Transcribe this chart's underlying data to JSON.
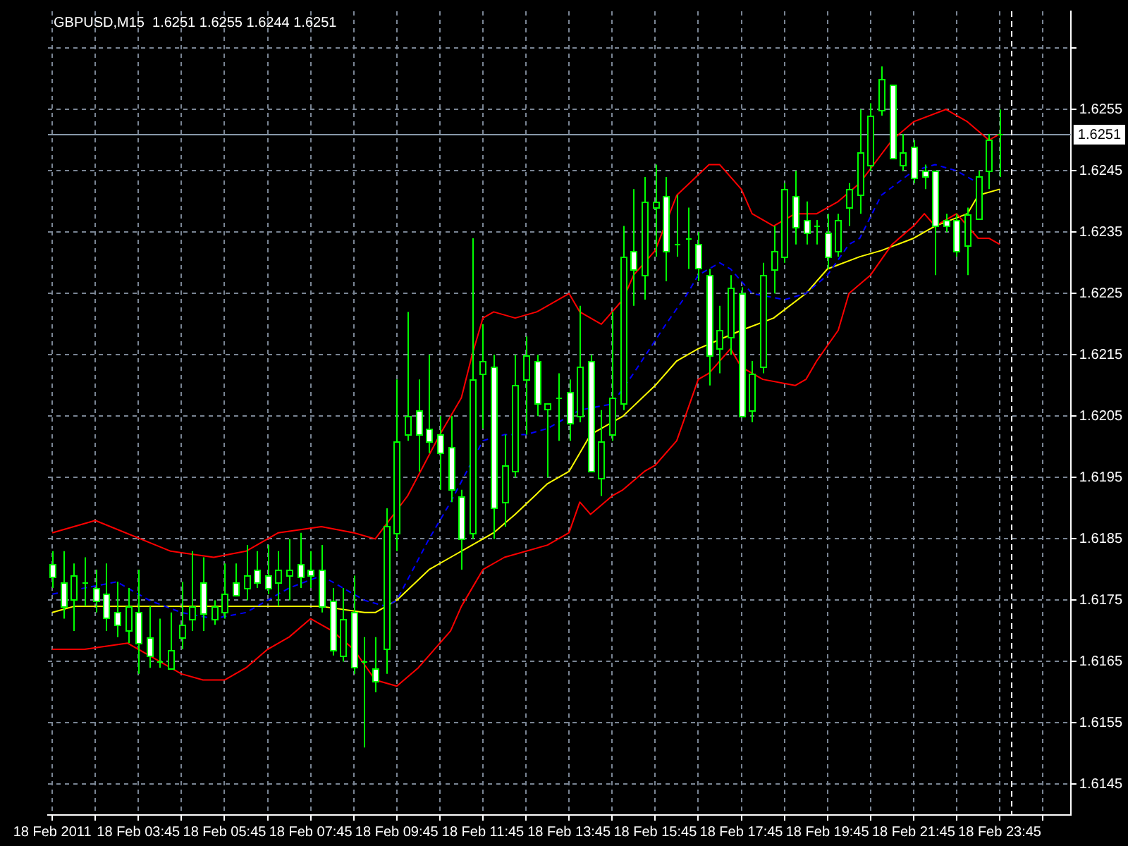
{
  "chart_data": {
    "type": "candlestick",
    "title": "GBPUSD,M15  1.6251 1.6255 1.6244 1.6251",
    "x": [
      "2011-02-18T01:45",
      "2011-02-18T02:00",
      "2011-02-18T02:15",
      "2011-02-18T02:30",
      "2011-02-18T02:45",
      "2011-02-18T03:00",
      "2011-02-18T03:15",
      "2011-02-18T03:30",
      "2011-02-18T03:45",
      "2011-02-18T04:00",
      "2011-02-18T04:15",
      "2011-02-18T04:30",
      "2011-02-18T04:45",
      "2011-02-18T05:00",
      "2011-02-18T05:15",
      "2011-02-18T05:30",
      "2011-02-18T05:45",
      "2011-02-18T06:00",
      "2011-02-18T06:15",
      "2011-02-18T06:30",
      "2011-02-18T06:45",
      "2011-02-18T07:00",
      "2011-02-18T07:15",
      "2011-02-18T07:30",
      "2011-02-18T07:45",
      "2011-02-18T08:00",
      "2011-02-18T08:15",
      "2011-02-18T08:30",
      "2011-02-18T08:45",
      "2011-02-18T09:00",
      "2011-02-18T09:15",
      "2011-02-18T09:30",
      "2011-02-18T09:45",
      "2011-02-18T10:00",
      "2011-02-18T10:15",
      "2011-02-18T10:30",
      "2011-02-18T10:45",
      "2011-02-18T11:00",
      "2011-02-18T11:15",
      "2011-02-18T11:30",
      "2011-02-18T11:45",
      "2011-02-18T12:00",
      "2011-02-18T12:15",
      "2011-02-18T12:30",
      "2011-02-18T12:45",
      "2011-02-18T13:00",
      "2011-02-18T13:15",
      "2011-02-18T13:30",
      "2011-02-18T13:45",
      "2011-02-18T14:00",
      "2011-02-18T14:15",
      "2011-02-18T14:30",
      "2011-02-18T14:45",
      "2011-02-18T15:00",
      "2011-02-18T15:15",
      "2011-02-18T15:30",
      "2011-02-18T15:45",
      "2011-02-18T16:00",
      "2011-02-18T16:15",
      "2011-02-18T16:30",
      "2011-02-18T16:45",
      "2011-02-18T17:00",
      "2011-02-18T17:15",
      "2011-02-18T17:30",
      "2011-02-18T17:45",
      "2011-02-18T18:00",
      "2011-02-18T18:15",
      "2011-02-18T18:30",
      "2011-02-18T18:45",
      "2011-02-18T19:00",
      "2011-02-18T19:15",
      "2011-02-18T19:30",
      "2011-02-18T19:45",
      "2011-02-18T20:00",
      "2011-02-18T20:15",
      "2011-02-18T20:30",
      "2011-02-18T20:45",
      "2011-02-18T21:00",
      "2011-02-18T21:15",
      "2011-02-18T21:30",
      "2011-02-18T21:45",
      "2011-02-18T22:00",
      "2011-02-18T22:15",
      "2011-02-18T22:30",
      "2011-02-18T22:45",
      "2011-02-18T23:00",
      "2011-02-18T23:15",
      "2011-02-18T23:30",
      "2011-02-18T23:45"
    ],
    "ohlc": [
      [
        1.6181,
        1.6183,
        1.6177,
        1.6179
      ],
      [
        1.6178,
        1.6183,
        1.6172,
        1.6174
      ],
      [
        1.6175,
        1.6181,
        1.617,
        1.6179
      ],
      [
        1.6178,
        1.6182,
        1.6174,
        1.6178
      ],
      [
        1.6177,
        1.618,
        1.6173,
        1.6175
      ],
      [
        1.6176,
        1.6181,
        1.617,
        1.6172
      ],
      [
        1.6173,
        1.6178,
        1.6169,
        1.6171
      ],
      [
        1.617,
        1.6177,
        1.6168,
        1.6174
      ],
      [
        1.6173,
        1.618,
        1.6163,
        1.6168
      ],
      [
        1.6169,
        1.6174,
        1.6164,
        1.6166
      ],
      [
        1.6165,
        1.6172,
        1.6164,
        1.6165
      ],
      [
        1.6164,
        1.6173,
        1.6164,
        1.6167
      ],
      [
        1.6169,
        1.6178,
        1.6167,
        1.6171
      ],
      [
        1.6172,
        1.6183,
        1.617,
        1.6174
      ],
      [
        1.6178,
        1.6182,
        1.617,
        1.6173
      ],
      [
        1.6172,
        1.6175,
        1.6171,
        1.6174
      ],
      [
        1.6173,
        1.6181,
        1.6172,
        1.6176
      ],
      [
        1.6178,
        1.6181,
        1.6176,
        1.6176
      ],
      [
        1.6177,
        1.6184,
        1.6175,
        1.6179
      ],
      [
        1.618,
        1.6183,
        1.6177,
        1.6178
      ],
      [
        1.6179,
        1.6184,
        1.6176,
        1.6177
      ],
      [
        1.6178,
        1.6183,
        1.6174,
        1.618
      ],
      [
        1.6179,
        1.6185,
        1.6175,
        1.618
      ],
      [
        1.6181,
        1.6186,
        1.6177,
        1.6179
      ],
      [
        1.618,
        1.6183,
        1.6177,
        1.6179
      ],
      [
        1.618,
        1.6184,
        1.6173,
        1.6174
      ],
      [
        1.6175,
        1.6177,
        1.6166,
        1.6167
      ],
      [
        1.6166,
        1.6177,
        1.6165,
        1.6172
      ],
      [
        1.6173,
        1.6179,
        1.6163,
        1.6164
      ],
      [
        1.6165,
        1.6169,
        1.6151,
        1.6165
      ],
      [
        1.6164,
        1.6169,
        1.616,
        1.6162
      ],
      [
        1.6167,
        1.619,
        1.6163,
        1.6187
      ],
      [
        1.6186,
        1.6211,
        1.6183,
        1.6201
      ],
      [
        1.6202,
        1.6222,
        1.6201,
        1.6205
      ],
      [
        1.6206,
        1.6211,
        1.6196,
        1.6202
      ],
      [
        1.6203,
        1.6215,
        1.6199,
        1.6201
      ],
      [
        1.6202,
        1.6205,
        1.6193,
        1.6199
      ],
      [
        1.62,
        1.6205,
        1.6191,
        1.6193
      ],
      [
        1.6192,
        1.6193,
        1.618,
        1.6185
      ],
      [
        1.6186,
        1.6234,
        1.6185,
        1.6211
      ],
      [
        1.6212,
        1.622,
        1.6203,
        1.6214
      ],
      [
        1.6213,
        1.6215,
        1.6185,
        1.619
      ],
      [
        1.6191,
        1.6202,
        1.6187,
        1.6197
      ],
      [
        1.6196,
        1.6215,
        1.6195,
        1.621
      ],
      [
        1.6211,
        1.6218,
        1.6202,
        1.6215
      ],
      [
        1.6214,
        1.6215,
        1.6205,
        1.6207
      ],
      [
        1.6206,
        1.6207,
        1.6195,
        1.6207
      ],
      [
        1.6208,
        1.6212,
        1.6201,
        1.6208
      ],
      [
        1.6209,
        1.6211,
        1.6201,
        1.6204
      ],
      [
        1.6205,
        1.6223,
        1.6204,
        1.6213
      ],
      [
        1.6214,
        1.6215,
        1.6196,
        1.6196
      ],
      [
        1.6195,
        1.6206,
        1.6192,
        1.6201
      ],
      [
        1.6202,
        1.6222,
        1.6201,
        1.6208
      ],
      [
        1.6207,
        1.6236,
        1.6206,
        1.6231
      ],
      [
        1.6232,
        1.6242,
        1.6223,
        1.6229
      ],
      [
        1.6228,
        1.6244,
        1.6224,
        1.624
      ],
      [
        1.6239,
        1.6246,
        1.6231,
        1.624
      ],
      [
        1.6241,
        1.6244,
        1.6227,
        1.6232
      ],
      [
        1.6233,
        1.6241,
        1.6231,
        1.6233
      ],
      [
        1.6234,
        1.6239,
        1.6229,
        1.6234
      ],
      [
        1.6233,
        1.6235,
        1.6227,
        1.6229
      ],
      [
        1.6228,
        1.6229,
        1.621,
        1.6215
      ],
      [
        1.6216,
        1.6223,
        1.6212,
        1.6219
      ],
      [
        1.6218,
        1.6228,
        1.6215,
        1.6226
      ],
      [
        1.6225,
        1.6226,
        1.6205,
        1.6205
      ],
      [
        1.6206,
        1.6214,
        1.6204,
        1.6212
      ],
      [
        1.6213,
        1.623,
        1.6212,
        1.6228
      ],
      [
        1.6229,
        1.6236,
        1.6225,
        1.6232
      ],
      [
        1.6231,
        1.6243,
        1.623,
        1.6242
      ],
      [
        1.6241,
        1.6245,
        1.6233,
        1.6236
      ],
      [
        1.6237,
        1.624,
        1.6233,
        1.6235
      ],
      [
        1.6236,
        1.6237,
        1.6233,
        1.6236
      ],
      [
        1.6235,
        1.6238,
        1.6229,
        1.6231
      ],
      [
        1.6232,
        1.6238,
        1.6231,
        1.6237
      ],
      [
        1.6239,
        1.6243,
        1.6236,
        1.6242
      ],
      [
        1.6241,
        1.6255,
        1.6238,
        1.6248
      ],
      [
        1.6246,
        1.6256,
        1.6245,
        1.6254
      ],
      [
        1.6255,
        1.6262,
        1.6254,
        1.626
      ],
      [
        1.6259,
        1.6259,
        1.6247,
        1.6247
      ],
      [
        1.6246,
        1.6251,
        1.6245,
        1.6248
      ],
      [
        1.6249,
        1.625,
        1.6243,
        1.6244
      ],
      [
        1.6245,
        1.6246,
        1.6242,
        1.6244
      ],
      [
        1.6245,
        1.6245,
        1.6228,
        1.6236
      ],
      [
        1.6237,
        1.6238,
        1.6235,
        1.6236
      ],
      [
        1.6237,
        1.6238,
        1.6231,
        1.6232
      ],
      [
        1.6233,
        1.6239,
        1.6228,
        1.6238
      ],
      [
        1.6237,
        1.6245,
        1.6237,
        1.6244
      ],
      [
        1.6245,
        1.6251,
        1.6242,
        1.625
      ],
      [
        1.6251,
        1.6255,
        1.6244,
        1.6251
      ]
    ],
    "color": "#00ff00",
    "colors": [
      "#ffffff",
      "#ffffff",
      "#000000",
      "#00ff00",
      "#ffffff",
      "#ffffff",
      "#ffffff",
      "#000000",
      "#ffffff",
      "#ffffff",
      "#00ff00",
      "#000000",
      "#000000",
      "#000000",
      "#ffffff",
      "#000000",
      "#000000",
      "#ffffff",
      "#000000",
      "#ffffff",
      "#ffffff",
      "#000000",
      "#000000",
      "#ffffff",
      "#ffffff",
      "#ffffff",
      "#ffffff",
      "#000000",
      "#ffffff",
      "#00ff00",
      "#ffffff",
      "#000000",
      "#000000",
      "#000000",
      "#ffffff",
      "#ffffff",
      "#ffffff",
      "#ffffff",
      "#ffffff",
      "#000000",
      "#000000",
      "#ffffff",
      "#000000",
      "#000000",
      "#000000",
      "#ffffff",
      "#000000",
      "#00ff00",
      "#ffffff",
      "#000000",
      "#ffffff",
      "#000000",
      "#000000",
      "#000000",
      "#ffffff",
      "#000000",
      "#000000",
      "#ffffff",
      "#00ff00",
      "#00ff00",
      "#ffffff",
      "#ffffff",
      "#000000",
      "#000000",
      "#ffffff",
      "#000000",
      "#000000",
      "#000000",
      "#000000",
      "#ffffff",
      "#ffffff",
      "#00ff00",
      "#ffffff",
      "#000000",
      "#000000",
      "#000000",
      "#000000",
      "#000000",
      "#ffffff",
      "#000000",
      "#ffffff",
      "#ffffff",
      "#ffffff",
      "#ffffff",
      "#ffffff",
      "#000000",
      "#000000",
      "#000000",
      "#00ff00"
    ],
    "series": [
      {
        "type": "line",
        "color": "#ff0000",
        "line_style": "solid",
        "x": [
          "2011-02-18T01:45",
          "2011-02-18T02:45",
          "2011-02-18T04:30",
          "2011-02-18T05:30",
          "2011-02-18T06:15",
          "2011-02-18T07:00",
          "2011-02-18T08:00",
          "2011-02-18T08:45",
          "2011-02-18T09:15",
          "2011-02-18T10:00",
          "2011-02-18T10:45",
          "2011-02-18T11:15",
          "2011-02-18T11:30",
          "2011-02-18T11:45",
          "2011-02-18T12:00",
          "2011-02-18T12:30",
          "2011-02-18T13:00",
          "2011-02-18T13:45",
          "2011-02-18T14:00",
          "2011-02-18T14:30",
          "2011-02-18T15:00",
          "2011-02-18T15:15",
          "2011-02-18T15:45",
          "2011-02-18T16:15",
          "2011-02-18T17:00",
          "2011-02-18T17:15",
          "2011-02-18T17:45",
          "2011-02-18T18:00",
          "2011-02-18T18:30",
          "2011-02-18T19:00",
          "2011-02-18T19:30",
          "2011-02-18T20:00",
          "2011-02-18T20:30",
          "2011-02-18T21:15",
          "2011-02-18T21:45",
          "2011-02-18T22:30",
          "2011-02-18T23:00",
          "2011-02-18T23:30",
          "2011-02-18T23:45"
        ],
        "values": [
          1.6186,
          1.6188,
          1.6183,
          1.6182,
          1.6183,
          1.6186,
          1.6187,
          1.6186,
          1.6185,
          1.6192,
          1.6202,
          1.6208,
          1.6215,
          1.6221,
          1.6222,
          1.6221,
          1.6222,
          1.6225,
          1.6222,
          1.622,
          1.6224,
          1.6228,
          1.6232,
          1.6241,
          1.6246,
          1.6246,
          1.6242,
          1.6238,
          1.6236,
          1.6238,
          1.6238,
          1.624,
          1.6243,
          1.625,
          1.6253,
          1.6255,
          1.6253,
          1.625,
          1.6251
        ]
      },
      {
        "type": "line",
        "color": "#ff0000",
        "line_style": "solid",
        "x": [
          "2011-02-18T01:45",
          "2011-02-18T02:30",
          "2011-02-18T03:30",
          "2011-02-18T04:00",
          "2011-02-18T04:45",
          "2011-02-18T05:15",
          "2011-02-18T05:45",
          "2011-02-18T06:15",
          "2011-02-18T06:45",
          "2011-02-18T07:15",
          "2011-02-18T07:45",
          "2011-02-18T08:15",
          "2011-02-18T08:45",
          "2011-02-18T09:15",
          "2011-02-18T09:45",
          "2011-02-18T10:15",
          "2011-02-18T11:00",
          "2011-02-18T11:15",
          "2011-02-18T11:45",
          "2011-02-18T12:15",
          "2011-02-18T13:15",
          "2011-02-18T13:45",
          "2011-02-18T14:00",
          "2011-02-18T14:15",
          "2011-02-18T14:45",
          "2011-02-18T15:00",
          "2011-02-18T15:30",
          "2011-02-18T15:45",
          "2011-02-18T16:15",
          "2011-02-18T16:45",
          "2011-02-18T17:00",
          "2011-02-18T17:30",
          "2011-02-18T17:45",
          "2011-02-18T18:15",
          "2011-02-18T19:00",
          "2011-02-18T19:15",
          "2011-02-18T19:30",
          "2011-02-18T20:00",
          "2011-02-18T20:15",
          "2011-02-18T20:45",
          "2011-02-18T21:15",
          "2011-02-18T21:45",
          "2011-02-18T22:00",
          "2011-02-18T22:15",
          "2011-02-18T22:45",
          "2011-02-18T23:15",
          "2011-02-18T23:30",
          "2011-02-18T23:45"
        ],
        "values": [
          1.6167,
          1.6167,
          1.6168,
          1.6166,
          1.6163,
          1.6162,
          1.6162,
          1.6164,
          1.6167,
          1.6169,
          1.6172,
          1.617,
          1.6167,
          1.6162,
          1.6161,
          1.6164,
          1.617,
          1.6174,
          1.618,
          1.6182,
          1.6184,
          1.6186,
          1.6191,
          1.6189,
          1.6192,
          1.6193,
          1.6196,
          1.6197,
          1.6201,
          1.6211,
          1.6212,
          1.6216,
          1.6213,
          1.6211,
          1.621,
          1.6211,
          1.6214,
          1.6219,
          1.6225,
          1.6228,
          1.6233,
          1.6236,
          1.6238,
          1.6236,
          1.6238,
          1.6234,
          1.6234,
          1.6233
        ]
      },
      {
        "type": "line",
        "color": "#0000ff",
        "line_style": "dashed",
        "x": [
          "2011-02-18T01:45",
          "2011-02-18T03:15",
          "2011-02-18T04:00",
          "2011-02-18T04:45",
          "2011-02-18T05:30",
          "2011-02-18T06:15",
          "2011-02-18T07:15",
          "2011-02-18T08:00",
          "2011-02-18T09:00",
          "2011-02-18T09:30",
          "2011-02-18T09:45",
          "2011-02-18T10:30",
          "2011-02-18T11:00",
          "2011-02-18T11:45",
          "2011-02-18T12:15",
          "2011-02-18T12:45",
          "2011-02-18T13:15",
          "2011-02-18T14:00",
          "2011-02-18T14:45",
          "2011-02-18T15:15",
          "2011-02-18T16:00",
          "2011-02-18T16:30",
          "2011-02-18T16:45",
          "2011-02-18T17:15",
          "2011-02-18T17:30",
          "2011-02-18T18:00",
          "2011-02-18T18:45",
          "2011-02-18T19:15",
          "2011-02-18T19:45",
          "2011-02-18T20:15",
          "2011-02-18T20:30",
          "2011-02-18T21:00",
          "2011-02-18T21:45",
          "2011-02-18T22:15",
          "2011-02-18T22:45",
          "2011-02-18T23:15"
        ],
        "values": [
          1.6176,
          1.6178,
          1.6175,
          1.6173,
          1.6172,
          1.6173,
          1.6177,
          1.6179,
          1.6175,
          1.6174,
          1.6175,
          1.6185,
          1.6191,
          1.6201,
          1.6202,
          1.6202,
          1.6203,
          1.6206,
          1.6207,
          1.6212,
          1.622,
          1.6225,
          1.6228,
          1.623,
          1.6229,
          1.6225,
          1.6224,
          1.6225,
          1.6228,
          1.6233,
          1.6234,
          1.6241,
          1.6245,
          1.6246,
          1.6245,
          1.6243
        ]
      },
      {
        "type": "line",
        "color": "#ffff00",
        "line_style": "solid",
        "x": [
          "2011-02-18T01:45",
          "2011-02-18T02:15",
          "2011-02-18T03:15",
          "2011-02-18T04:45",
          "2011-02-18T05:45",
          "2011-02-18T06:45",
          "2011-02-18T08:00",
          "2011-02-18T09:00",
          "2011-02-18T09:15",
          "2011-02-18T09:45",
          "2011-02-18T10:30",
          "2011-02-18T11:00",
          "2011-02-18T11:30",
          "2011-02-18T12:00",
          "2011-02-18T12:30",
          "2011-02-18T13:15",
          "2011-02-18T13:45",
          "2011-02-18T14:15",
          "2011-02-18T15:00",
          "2011-02-18T15:45",
          "2011-02-18T16:15",
          "2011-02-18T16:45",
          "2011-02-18T17:45",
          "2011-02-18T18:30",
          "2011-02-18T19:15",
          "2011-02-18T19:45",
          "2011-02-18T20:30",
          "2011-02-18T21:00",
          "2011-02-18T21:45",
          "2011-02-18T22:15",
          "2011-02-18T23:00",
          "2011-02-18T23:15",
          "2011-02-18T23:45"
        ],
        "values": [
          1.6173,
          1.6174,
          1.6174,
          1.6174,
          1.6174,
          1.6174,
          1.6174,
          1.6173,
          1.6173,
          1.6175,
          1.618,
          1.6182,
          1.6184,
          1.6186,
          1.6189,
          1.6194,
          1.6196,
          1.6202,
          1.6205,
          1.621,
          1.6214,
          1.6216,
          1.6219,
          1.6221,
          1.6225,
          1.6229,
          1.6231,
          1.6232,
          1.6234,
          1.6236,
          1.6238,
          1.6241,
          1.6242
        ]
      }
    ],
    "xlim": [
      "2011-02-18T01:39",
      "2011-02-19T01:24"
    ],
    "xticks": [
      {
        "value": "2011-02-18T01:45",
        "label": "18 Feb 2011"
      },
      {
        "value": "2011-02-18T02:45",
        "label": null
      },
      {
        "value": "2011-02-18T03:45",
        "label": "18 Feb 03:45"
      },
      {
        "value": "2011-02-18T04:45",
        "label": null
      },
      {
        "value": "2011-02-18T05:45",
        "label": "18 Feb 05:45"
      },
      {
        "value": "2011-02-18T06:45",
        "label": null
      },
      {
        "value": "2011-02-18T07:45",
        "label": "18 Feb 07:45"
      },
      {
        "value": "2011-02-18T08:45",
        "label": null
      },
      {
        "value": "2011-02-18T09:45",
        "label": "18 Feb 09:45"
      },
      {
        "value": "2011-02-18T10:45",
        "label": null
      },
      {
        "value": "2011-02-18T11:45",
        "label": "18 Feb 11:45"
      },
      {
        "value": "2011-02-18T12:45",
        "label": null
      },
      {
        "value": "2011-02-18T13:45",
        "label": "18 Feb 13:45"
      },
      {
        "value": "2011-02-18T14:45",
        "label": null
      },
      {
        "value": "2011-02-18T15:45",
        "label": "18 Feb 15:45"
      },
      {
        "value": "2011-02-18T16:45",
        "label": null
      },
      {
        "value": "2011-02-18T17:45",
        "label": "18 Feb 17:45"
      },
      {
        "value": "2011-02-18T18:45",
        "label": null
      },
      {
        "value": "2011-02-18T19:45",
        "label": "18 Feb 19:45"
      },
      {
        "value": "2011-02-18T20:45",
        "label": null
      },
      {
        "value": "2011-02-18T21:45",
        "label": "18 Feb 21:45"
      },
      {
        "value": "2011-02-18T22:45",
        "label": null
      },
      {
        "value": "2011-02-18T23:45",
        "label": "18 Feb 23:45"
      },
      {
        "value": "2011-02-19T00:45",
        "label": null
      }
    ],
    "ylim": [
      1.614,
      1.6271
    ],
    "yticks": [
      1.6145,
      1.6155,
      1.6165,
      1.6175,
      1.6185,
      1.6195,
      1.6205,
      1.6215,
      1.6225,
      1.6235,
      1.6245,
      1.6255,
      {
        "value": 1.6265,
        "label": null
      }
    ],
    "grid": true,
    "ref_lines": [
      {
        "axis": "y",
        "value": 1.6251,
        "label": "1.6251",
        "color": "#8899aa",
        "line_style": "solid"
      },
      {
        "axis": "x",
        "value": "2011-02-19T00:00",
        "label": null,
        "color": "#ffffff",
        "line_style": "dashed"
      }
    ]
  }
}
